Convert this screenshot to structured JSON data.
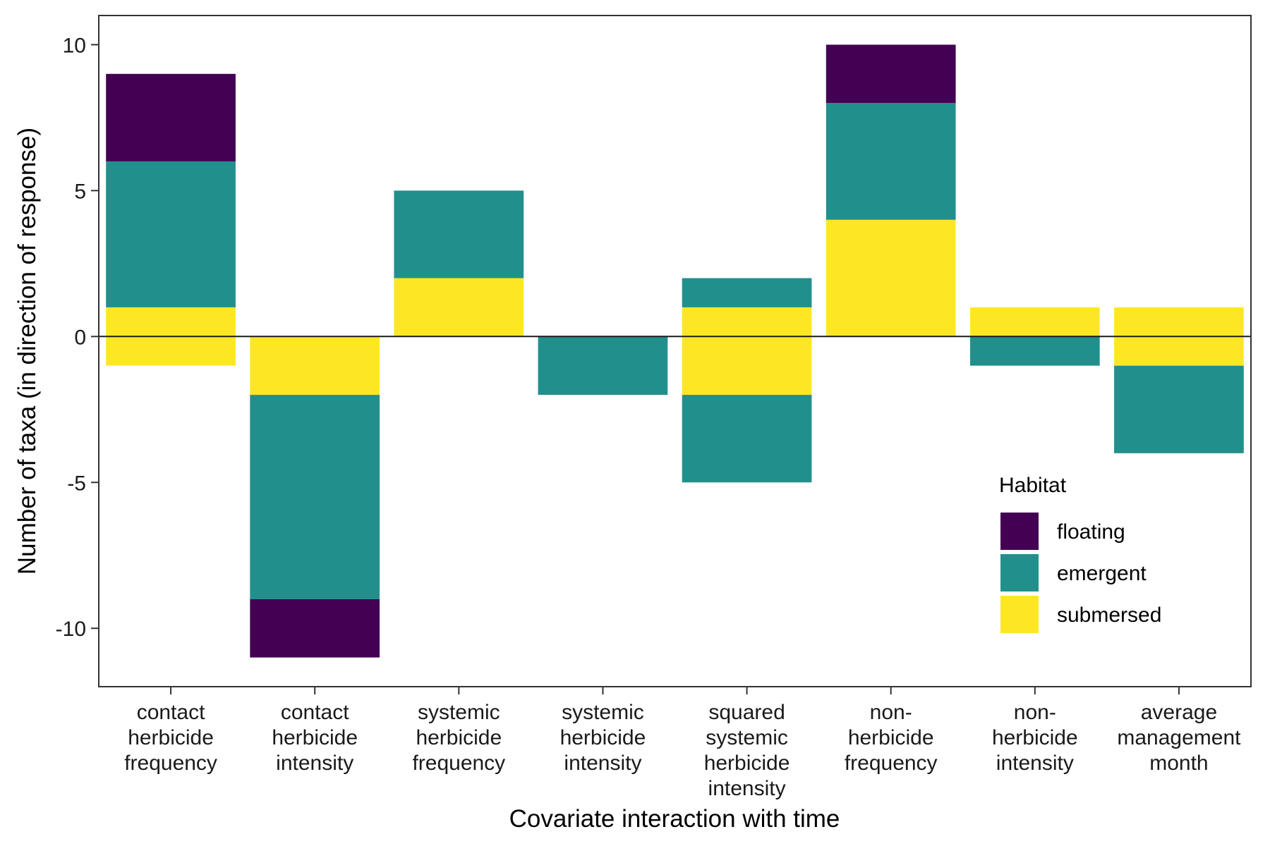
{
  "chart_data": {
    "type": "bar",
    "stacked": true,
    "xlabel": "Covariate interaction with time",
    "ylabel": "Number of taxa (in direction of response)",
    "ylim": [
      -12,
      11
    ],
    "yticks": [
      -10,
      -5,
      0,
      5,
      10
    ],
    "ytick_labels": [
      "-10",
      "-5",
      "0",
      "5",
      "10"
    ],
    "grid": false,
    "categories": [
      [
        "contact",
        "herbicide",
        "frequency"
      ],
      [
        "contact",
        "herbicide",
        "intensity"
      ],
      [
        "systemic",
        "herbicide",
        "frequency"
      ],
      [
        "systemic",
        "herbicide",
        "intensity"
      ],
      [
        "squared",
        "systemic",
        "herbicide",
        "intensity"
      ],
      [
        "non-",
        "herbicide",
        "frequency"
      ],
      [
        "non-",
        "herbicide",
        "intensity"
      ],
      [
        "average",
        "management",
        "month"
      ]
    ],
    "series": [
      {
        "name": "submersed",
        "color": "#FDE725",
        "positive": [
          1,
          0,
          2,
          0,
          1,
          4,
          1,
          1
        ],
        "negative": [
          -1,
          -2,
          0,
          0,
          -2,
          0,
          0,
          -1
        ]
      },
      {
        "name": "emergent",
        "color": "#21908C",
        "positive": [
          5,
          0,
          3,
          0,
          1,
          4,
          0,
          0
        ],
        "negative": [
          0,
          -7,
          0,
          -2,
          -3,
          0,
          -1,
          -3
        ]
      },
      {
        "name": "floating",
        "color": "#440154",
        "positive": [
          3,
          0,
          0,
          0,
          0,
          2,
          0,
          0
        ],
        "negative": [
          0,
          -2,
          0,
          0,
          0,
          0,
          0,
          0
        ]
      }
    ],
    "legend": {
      "title": "Habitat",
      "placement": "bottom-right inside",
      "order": [
        "floating",
        "emergent",
        "submersed"
      ]
    }
  }
}
